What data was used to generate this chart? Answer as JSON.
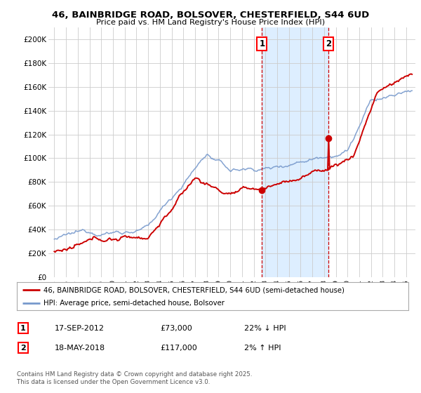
{
  "title_line1": "46, BAINBRIDGE ROAD, BOLSOVER, CHESTERFIELD, S44 6UD",
  "title_line2": "Price paid vs. HM Land Registry's House Price Index (HPI)",
  "legend_line1": "46, BAINBRIDGE ROAD, BOLSOVER, CHESTERFIELD, S44 6UD (semi-detached house)",
  "legend_line2": "HPI: Average price, semi-detached house, Bolsover",
  "marker1_date": "17-SEP-2012",
  "marker1_price": "£73,000",
  "marker1_hpi": "22% ↓ HPI",
  "marker2_date": "18-MAY-2018",
  "marker2_price": "£117,000",
  "marker2_hpi": "2% ↑ HPI",
  "sale1_x": 2012.71,
  "sale1_y": 73000,
  "sale2_x": 2018.38,
  "sale2_y": 117000,
  "vline1_x": 2012.71,
  "vline2_x": 2018.38,
  "hpi_color": "#7799cc",
  "price_color": "#cc0000",
  "shade_color": "#ddeeff",
  "ylabel_values": [
    "£0",
    "£20K",
    "£40K",
    "£60K",
    "£80K",
    "£100K",
    "£120K",
    "£140K",
    "£160K",
    "£180K",
    "£200K"
  ],
  "ylim": [
    0,
    210000
  ],
  "xlim_start": 1994.5,
  "xlim_end": 2025.8,
  "footer": "Contains HM Land Registry data © Crown copyright and database right 2025.\nThis data is licensed under the Open Government Licence v3.0."
}
